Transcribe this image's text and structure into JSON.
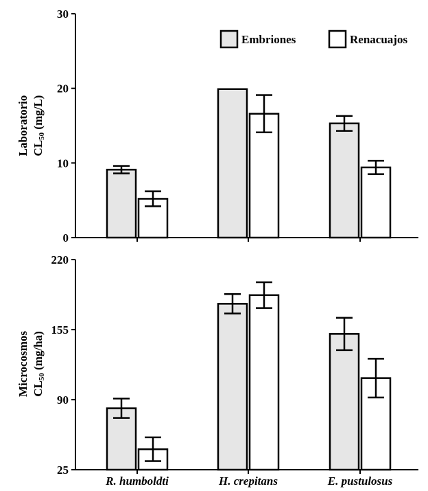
{
  "chart_data": [
    {
      "type": "bar",
      "categories": [
        "R. humboldti",
        "H. crepitans",
        "E. pustulosus"
      ],
      "ylabel_line1": "Laboratorio",
      "ylabel_line2_prefix": "CL",
      "ylabel_line2_sub": "50",
      "ylabel_line2_suffix": " (mg/L)",
      "ylim": [
        0,
        30
      ],
      "yticks": [
        0,
        10,
        20,
        30
      ],
      "series": [
        {
          "name": "Embriones",
          "values": [
            9.1,
            19.9,
            15.3
          ],
          "err": [
            0.5,
            0,
            1.0
          ],
          "fill": "#e6e6e6"
        },
        {
          "name": "Renacuajos",
          "values": [
            5.2,
            16.6,
            9.4
          ],
          "err": [
            1.0,
            2.5,
            0.9
          ],
          "fill": "#ffffff"
        }
      ],
      "legend": "top-right"
    },
    {
      "type": "bar",
      "categories": [
        "R. humboldti",
        "H. crepitans",
        "E. pustulosus"
      ],
      "ylabel_line1": "Microcosmos",
      "ylabel_line2_prefix": "CL",
      "ylabel_line2_sub": "50",
      "ylabel_line2_suffix": " (mg/ha)",
      "ylim": [
        25,
        220
      ],
      "yticks": [
        25,
        90,
        155,
        220
      ],
      "series": [
        {
          "name": "Embriones",
          "values": [
            82,
            179,
            151
          ],
          "err": [
            9,
            9,
            15
          ],
          "fill": "#e6e6e6"
        },
        {
          "name": "Renacuajos",
          "values": [
            44,
            187,
            110
          ],
          "err": [
            11,
            12,
            18
          ],
          "fill": "#ffffff"
        }
      ]
    }
  ],
  "legend": {
    "items": [
      {
        "name": "Embriones",
        "fill": "#e6e6e6"
      },
      {
        "name": "Renacuajos",
        "fill": "#ffffff"
      }
    ]
  }
}
